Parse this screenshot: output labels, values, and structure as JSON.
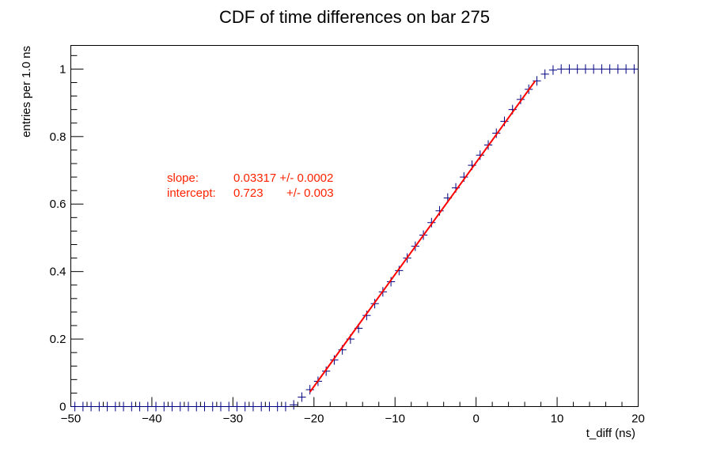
{
  "chart_data": {
    "type": "scatter",
    "title": "CDF of time differences on bar 275",
    "xlabel": "t_diff (ns)",
    "ylabel": "entries per 1.0 ns",
    "xlim": [
      -50,
      20
    ],
    "ylim": [
      0,
      1.07
    ],
    "x_ticks": [
      -50,
      -40,
      -30,
      -20,
      -10,
      0,
      10,
      20
    ],
    "x_tick_labels": [
      "−50",
      "−40",
      "−30",
      "−20",
      "−10",
      "0",
      "10",
      "20"
    ],
    "y_ticks": [
      0,
      0.2,
      0.4,
      0.6,
      0.8,
      1
    ],
    "y_tick_labels": [
      "0",
      "0.2",
      "0.4",
      "0.6",
      "0.8",
      "1"
    ],
    "grid": false,
    "series": [
      {
        "name": "",
        "color": "#000080",
        "x_err": 0.5,
        "x": [
          -49.5,
          -48.5,
          -47.5,
          -46.5,
          -45.5,
          -44.5,
          -43.5,
          -42.5,
          -41.5,
          -40.5,
          -39.5,
          -38.5,
          -37.5,
          -36.5,
          -35.5,
          -34.5,
          -33.5,
          -32.5,
          -31.5,
          -30.5,
          -29.5,
          -28.5,
          -27.5,
          -26.5,
          -25.5,
          -24.5,
          -23.5,
          -22.5,
          -21.5,
          -20.5,
          -19.5,
          -18.5,
          -17.5,
          -16.5,
          -15.5,
          -14.5,
          -13.5,
          -12.5,
          -11.5,
          -10.5,
          -9.5,
          -8.5,
          -7.5,
          -6.5,
          -5.5,
          -4.5,
          -3.5,
          -2.5,
          -1.5,
          -0.5,
          0.5,
          1.5,
          2.5,
          3.5,
          4.5,
          5.5,
          6.5,
          7.5,
          8.5,
          9.5,
          10.5,
          11.5,
          12.5,
          13.5,
          14.5,
          15.5,
          16.5,
          17.5,
          18.5,
          19.5
        ],
        "y": [
          0,
          0,
          0,
          0,
          0,
          0,
          0,
          0,
          0,
          0,
          0,
          0,
          0,
          0,
          0,
          0,
          0,
          0,
          0,
          0,
          0,
          0,
          0,
          0,
          0,
          0,
          0,
          0.005,
          0.028,
          0.05,
          0.075,
          0.105,
          0.138,
          0.168,
          0.2,
          0.232,
          0.27,
          0.305,
          0.34,
          0.37,
          0.403,
          0.44,
          0.475,
          0.508,
          0.545,
          0.58,
          0.618,
          0.648,
          0.68,
          0.715,
          0.745,
          0.775,
          0.81,
          0.845,
          0.88,
          0.91,
          0.94,
          0.965,
          0.985,
          0.997,
          1,
          1,
          1,
          1,
          1,
          1,
          1,
          1,
          1,
          1
        ]
      }
    ],
    "fit": {
      "color": "#ff0000",
      "slope": 0.03317,
      "intercept": 0.723,
      "x_range": [
        -20.5,
        7.3
      ]
    },
    "annotation": {
      "slope_label": "slope:",
      "slope_value": "0.03317 +/- 0.0002",
      "intercept_label": "intercept:",
      "intercept_value": "0.723",
      "intercept_error": "+/- 0.003",
      "color": "#ff2200"
    }
  }
}
